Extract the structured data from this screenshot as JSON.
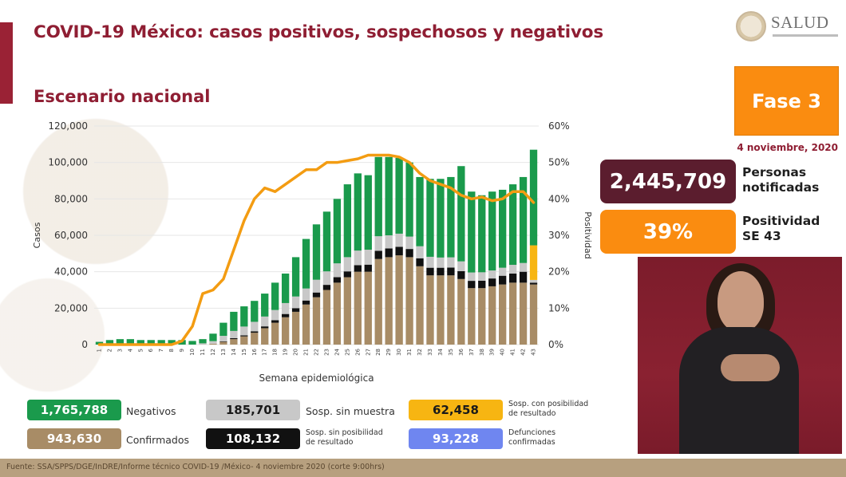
{
  "title": "COVID-19 México: casos positivos, sospechosos y negativos",
  "subtitle": "Escenario nacional",
  "logo_text": "SALUD",
  "phase": "Fase 3",
  "date": "4 noviembre, 2020",
  "kpis": {
    "notified_value": "2,445,709",
    "notified_label_1": "Personas",
    "notified_label_2": "notificadas",
    "positivity_value": "39%",
    "positivity_label_1": "Positividad",
    "positivity_label_2": "SE 43"
  },
  "legend": [
    {
      "value": "1,765,788",
      "label": "Negativos",
      "color": "#1a9a4c",
      "text_color": "#ffffff"
    },
    {
      "value": "185,701",
      "label": "Sosp. sin muestra",
      "color": "#c8c8c8",
      "text_color": "#1a1a1a"
    },
    {
      "value": "62,458",
      "label_1": "Sosp. con posibilidad",
      "label_2": "de resultado",
      "color": "#f7b512",
      "text_color": "#1a1a1a"
    },
    {
      "value": "943,630",
      "label": "Confirmados",
      "color": "#a88c66",
      "text_color": "#ffffff"
    },
    {
      "value": "108,132",
      "label_1": "Sosp. sin posibilidad",
      "label_2": "de resultado",
      "color": "#111111",
      "text_color": "#ffffff"
    },
    {
      "value": "93,228",
      "label_1": "Defunciones",
      "label_2": "confirmadas",
      "color": "#6f86f0",
      "text_color": "#ffffff"
    }
  ],
  "footer": "Fuente: SSA/SPPS/DGE/InDRE/Informe técnico COVID-19 /México- 4 noviembre 2020 (corte 9:00hrs)",
  "colors": {
    "confirmed": "#a88c66",
    "sosp_sin_posibilidad": "#111111",
    "sosp_sin_muestra": "#c8c8c8",
    "negative": "#1a9a4c",
    "sosp_con_posibilidad": "#f7b512",
    "positivity_line": "#f39c12"
  },
  "chart_data": {
    "type": "bar",
    "stacked": true,
    "xlabel": "Semana epidemiológica",
    "ylabel": "Casos",
    "y2label": "Positividad",
    "ylim": [
      0,
      120000
    ],
    "y2lim": [
      0,
      60
    ],
    "yticks": [
      "0",
      "20,000",
      "40,000",
      "60,000",
      "80,000",
      "100,000",
      "120,000"
    ],
    "y2ticks": [
      "0%",
      "10%",
      "20%",
      "30%",
      "40%",
      "50%",
      "60%"
    ],
    "categories": [
      "1",
      "2",
      "3",
      "4",
      "5",
      "6",
      "7",
      "8",
      "9",
      "10",
      "11",
      "12",
      "13",
      "14",
      "15",
      "16",
      "17",
      "18",
      "19",
      "20",
      "21",
      "22",
      "23",
      "24",
      "25",
      "26",
      "27",
      "28",
      "29",
      "30",
      "31",
      "32",
      "33",
      "34",
      "35",
      "36",
      "37",
      "38",
      "39",
      "40",
      "41",
      "42",
      "43"
    ],
    "series": [
      {
        "name": "Confirmados",
        "values": [
          0,
          0,
          0,
          0,
          0,
          0,
          0,
          0,
          0,
          0,
          100,
          500,
          1500,
          3000,
          4500,
          6500,
          9000,
          12000,
          15000,
          18000,
          22000,
          26000,
          30000,
          34000,
          37000,
          40000,
          40000,
          47000,
          48000,
          49000,
          48000,
          43000,
          38000,
          38000,
          38000,
          36000,
          31000,
          31000,
          32000,
          33000,
          34000,
          34000,
          33000
        ]
      },
      {
        "name": "Sosp. sin posibilidad de resultado",
        "values": [
          0,
          0,
          0,
          0,
          0,
          0,
          0,
          0,
          0,
          0,
          0,
          0,
          300,
          500,
          600,
          800,
          1000,
          1400,
          1800,
          2000,
          2200,
          2600,
          2800,
          3000,
          3200,
          3600,
          3900,
          4500,
          4800,
          4700,
          4500,
          4400,
          4200,
          4200,
          4300,
          4300,
          4000,
          4100,
          4300,
          4800,
          5000,
          6000,
          1000
        ]
      },
      {
        "name": "Sosp. sin muestra",
        "values": [
          0,
          0,
          0,
          0,
          0,
          0,
          0,
          0,
          0,
          0,
          600,
          1400,
          3000,
          4000,
          4800,
          5200,
          5400,
          5600,
          6000,
          6400,
          6600,
          7000,
          7400,
          7600,
          7800,
          8000,
          8200,
          8000,
          7200,
          7200,
          6800,
          6600,
          6000,
          5600,
          5600,
          5400,
          4600,
          4600,
          4400,
          4400,
          4800,
          4800,
          1500
        ]
      },
      {
        "name": "Sosp. con posibilidad de resultado",
        "values": [
          0,
          0,
          0,
          0,
          0,
          0,
          0,
          0,
          0,
          0,
          0,
          0,
          0,
          0,
          0,
          0,
          0,
          0,
          0,
          0,
          0,
          0,
          0,
          0,
          0,
          0,
          0,
          0,
          0,
          0,
          0,
          0,
          0,
          0,
          0,
          0,
          0,
          0,
          0,
          0,
          0,
          0,
          19000
        ]
      },
      {
        "name": "Negativos",
        "values": [
          1500,
          2500,
          3000,
          3000,
          2500,
          2500,
          2500,
          2500,
          2500,
          2000,
          2300,
          4100,
          7200,
          10500,
          11100,
          11500,
          12600,
          15000,
          16200,
          21600,
          27200,
          30400,
          32800,
          35400,
          40000,
          42400,
          40900,
          43500,
          43000,
          41600,
          40700,
          38000,
          42800,
          43200,
          44100,
          52300,
          44400,
          42300,
          43300,
          42800,
          44200,
          47200,
          52500
        ]
      }
    ],
    "line": {
      "name": "Positividad",
      "axis": "right",
      "values": [
        0,
        0,
        0,
        0,
        0,
        0,
        0,
        0,
        1,
        5,
        14,
        15,
        18,
        26,
        34,
        40,
        43,
        42,
        44,
        46,
        48,
        48,
        50,
        50,
        50.5,
        51,
        52,
        52,
        52,
        51.5,
        50,
        47,
        45,
        44,
        43,
        41,
        40,
        40.5,
        39.5,
        40,
        42,
        42,
        39
      ]
    }
  }
}
